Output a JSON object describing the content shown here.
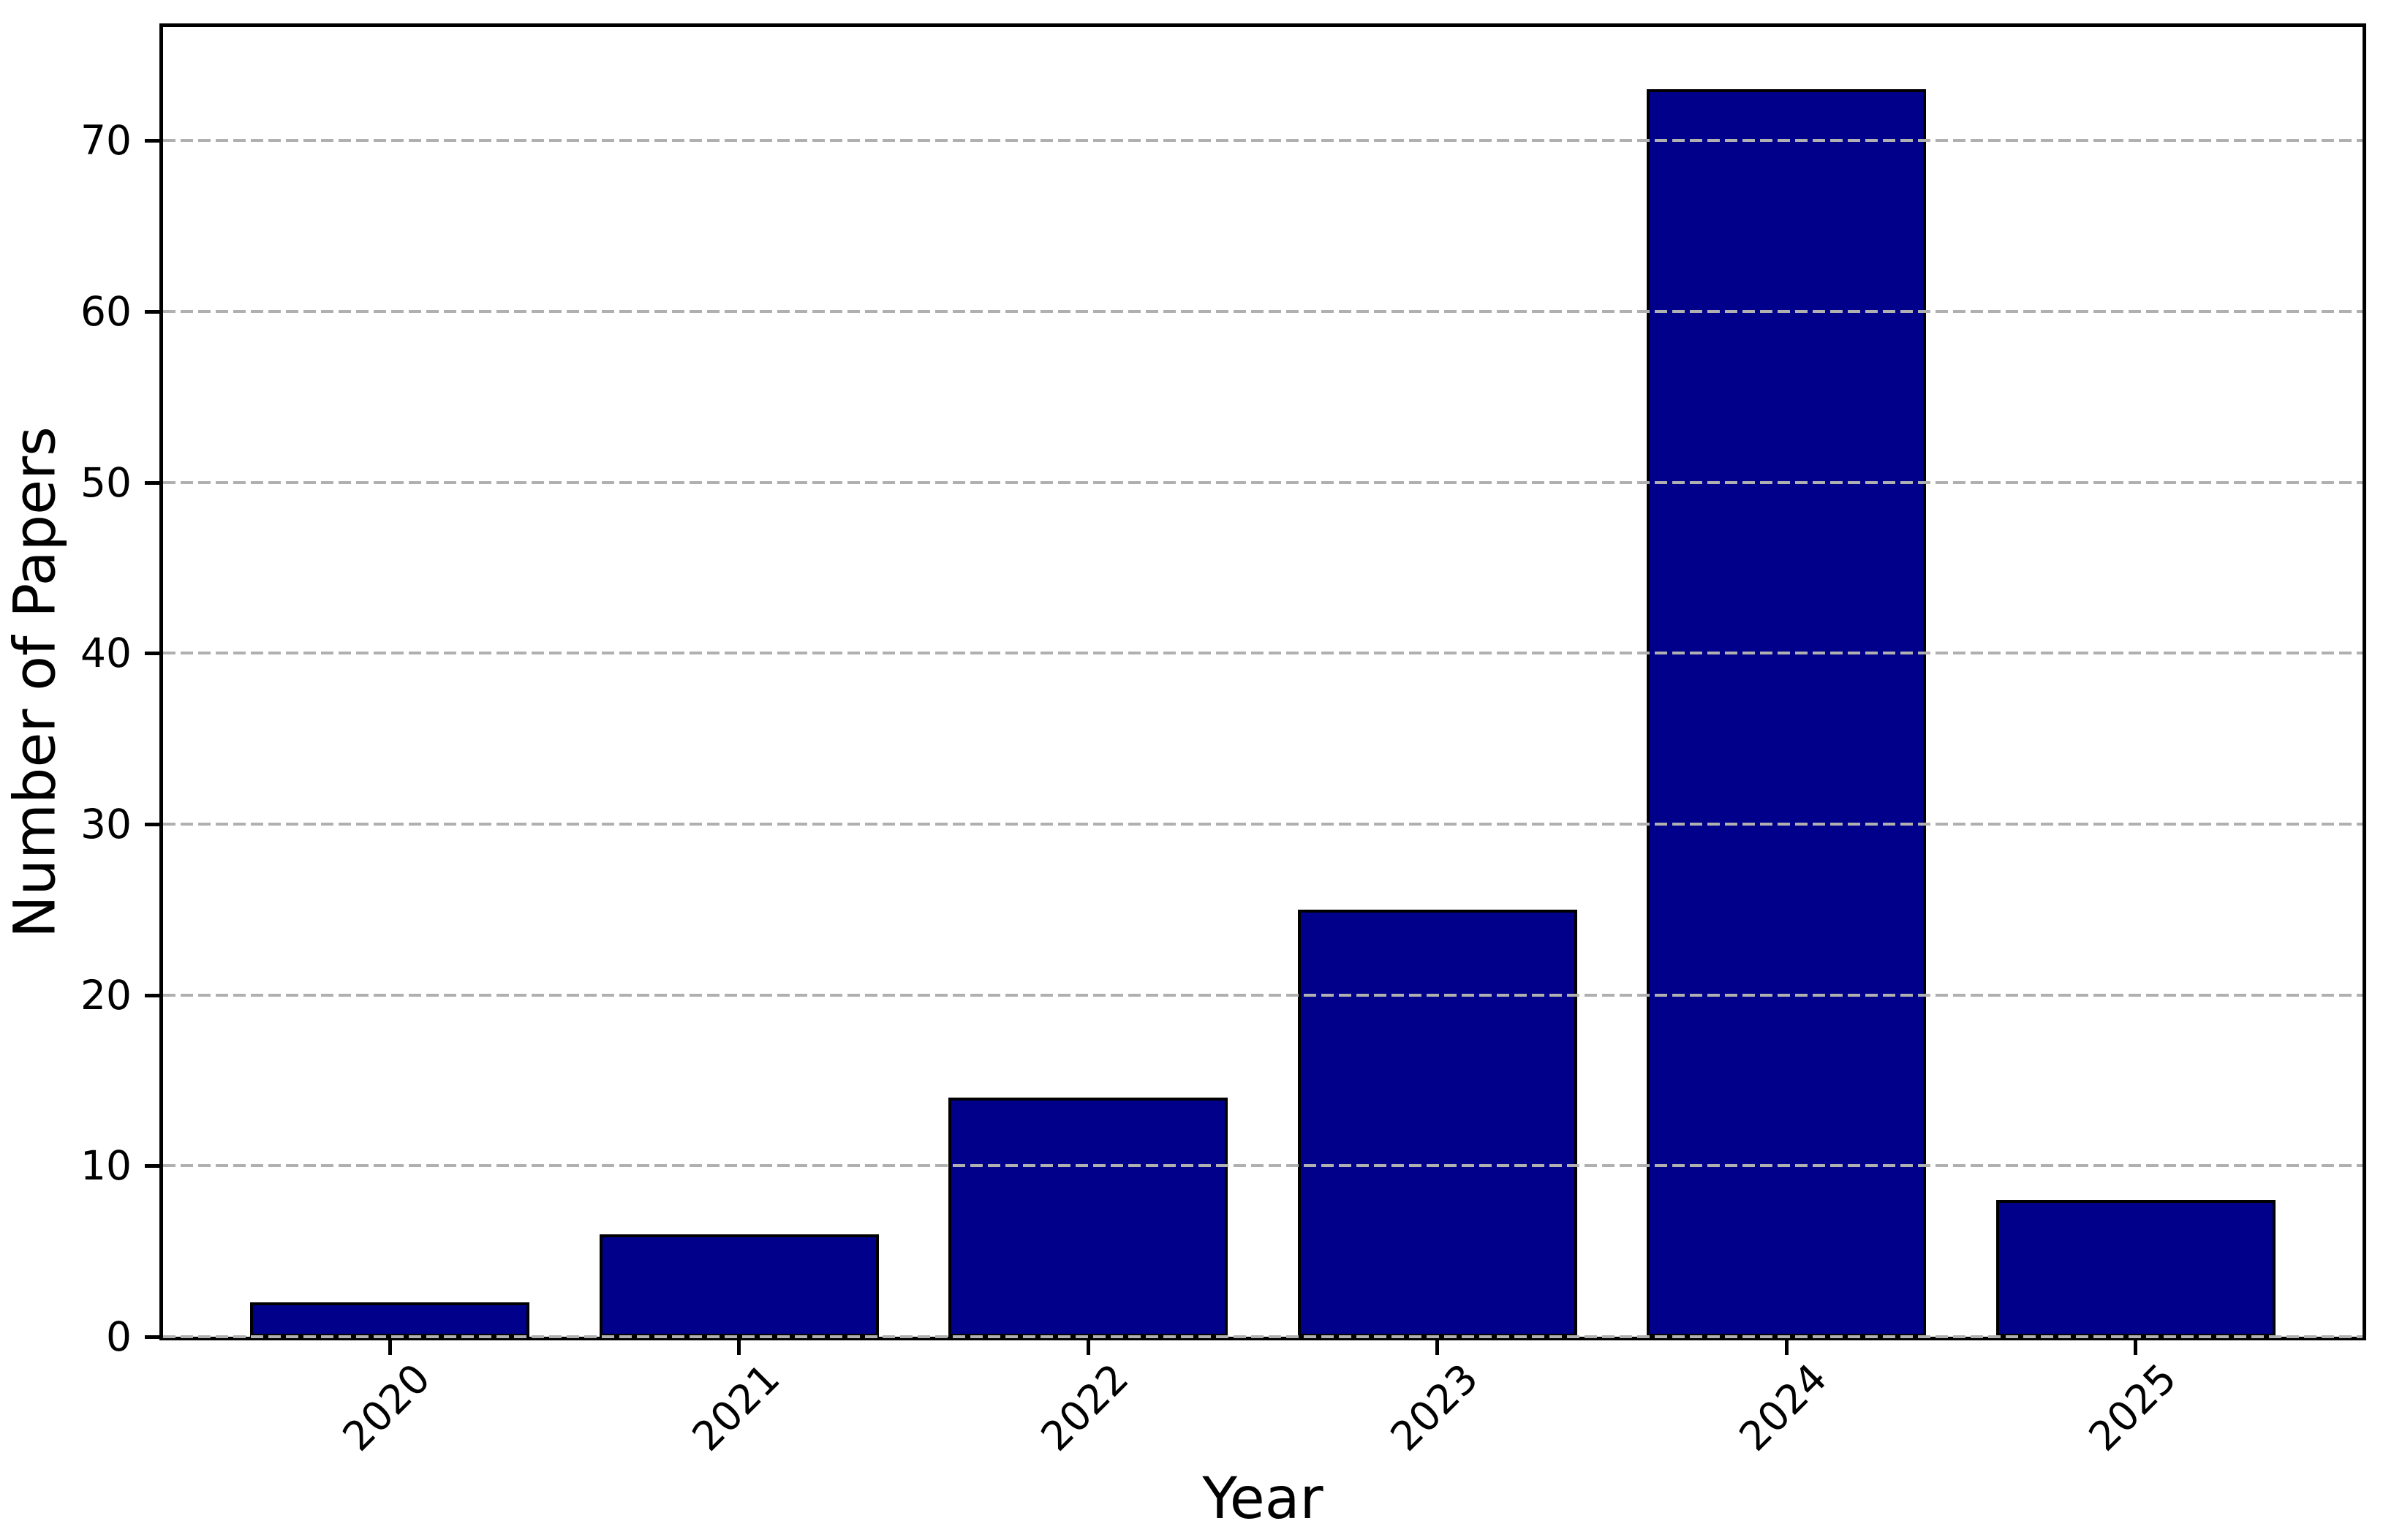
{
  "figure": {
    "background": "#ffffff",
    "text_color": "#000000"
  },
  "chart_data": {
    "type": "bar",
    "title": "",
    "xlabel": "Year",
    "ylabel": "Number of Papers",
    "categories": [
      "2020",
      "2021",
      "2022",
      "2023",
      "2024",
      "2025"
    ],
    "values": [
      2,
      6,
      14,
      25,
      73,
      8
    ],
    "yticks": [
      0,
      10,
      20,
      30,
      40,
      50,
      60,
      70
    ],
    "ylim": [
      0,
      76.65
    ],
    "xtick_rotation_deg": 45,
    "bar_color": "#00008B",
    "bar_edge_color": "#000000",
    "grid": {
      "axis": "y",
      "style": "dashed",
      "color": "#b0b0b0"
    },
    "legend": "none"
  }
}
